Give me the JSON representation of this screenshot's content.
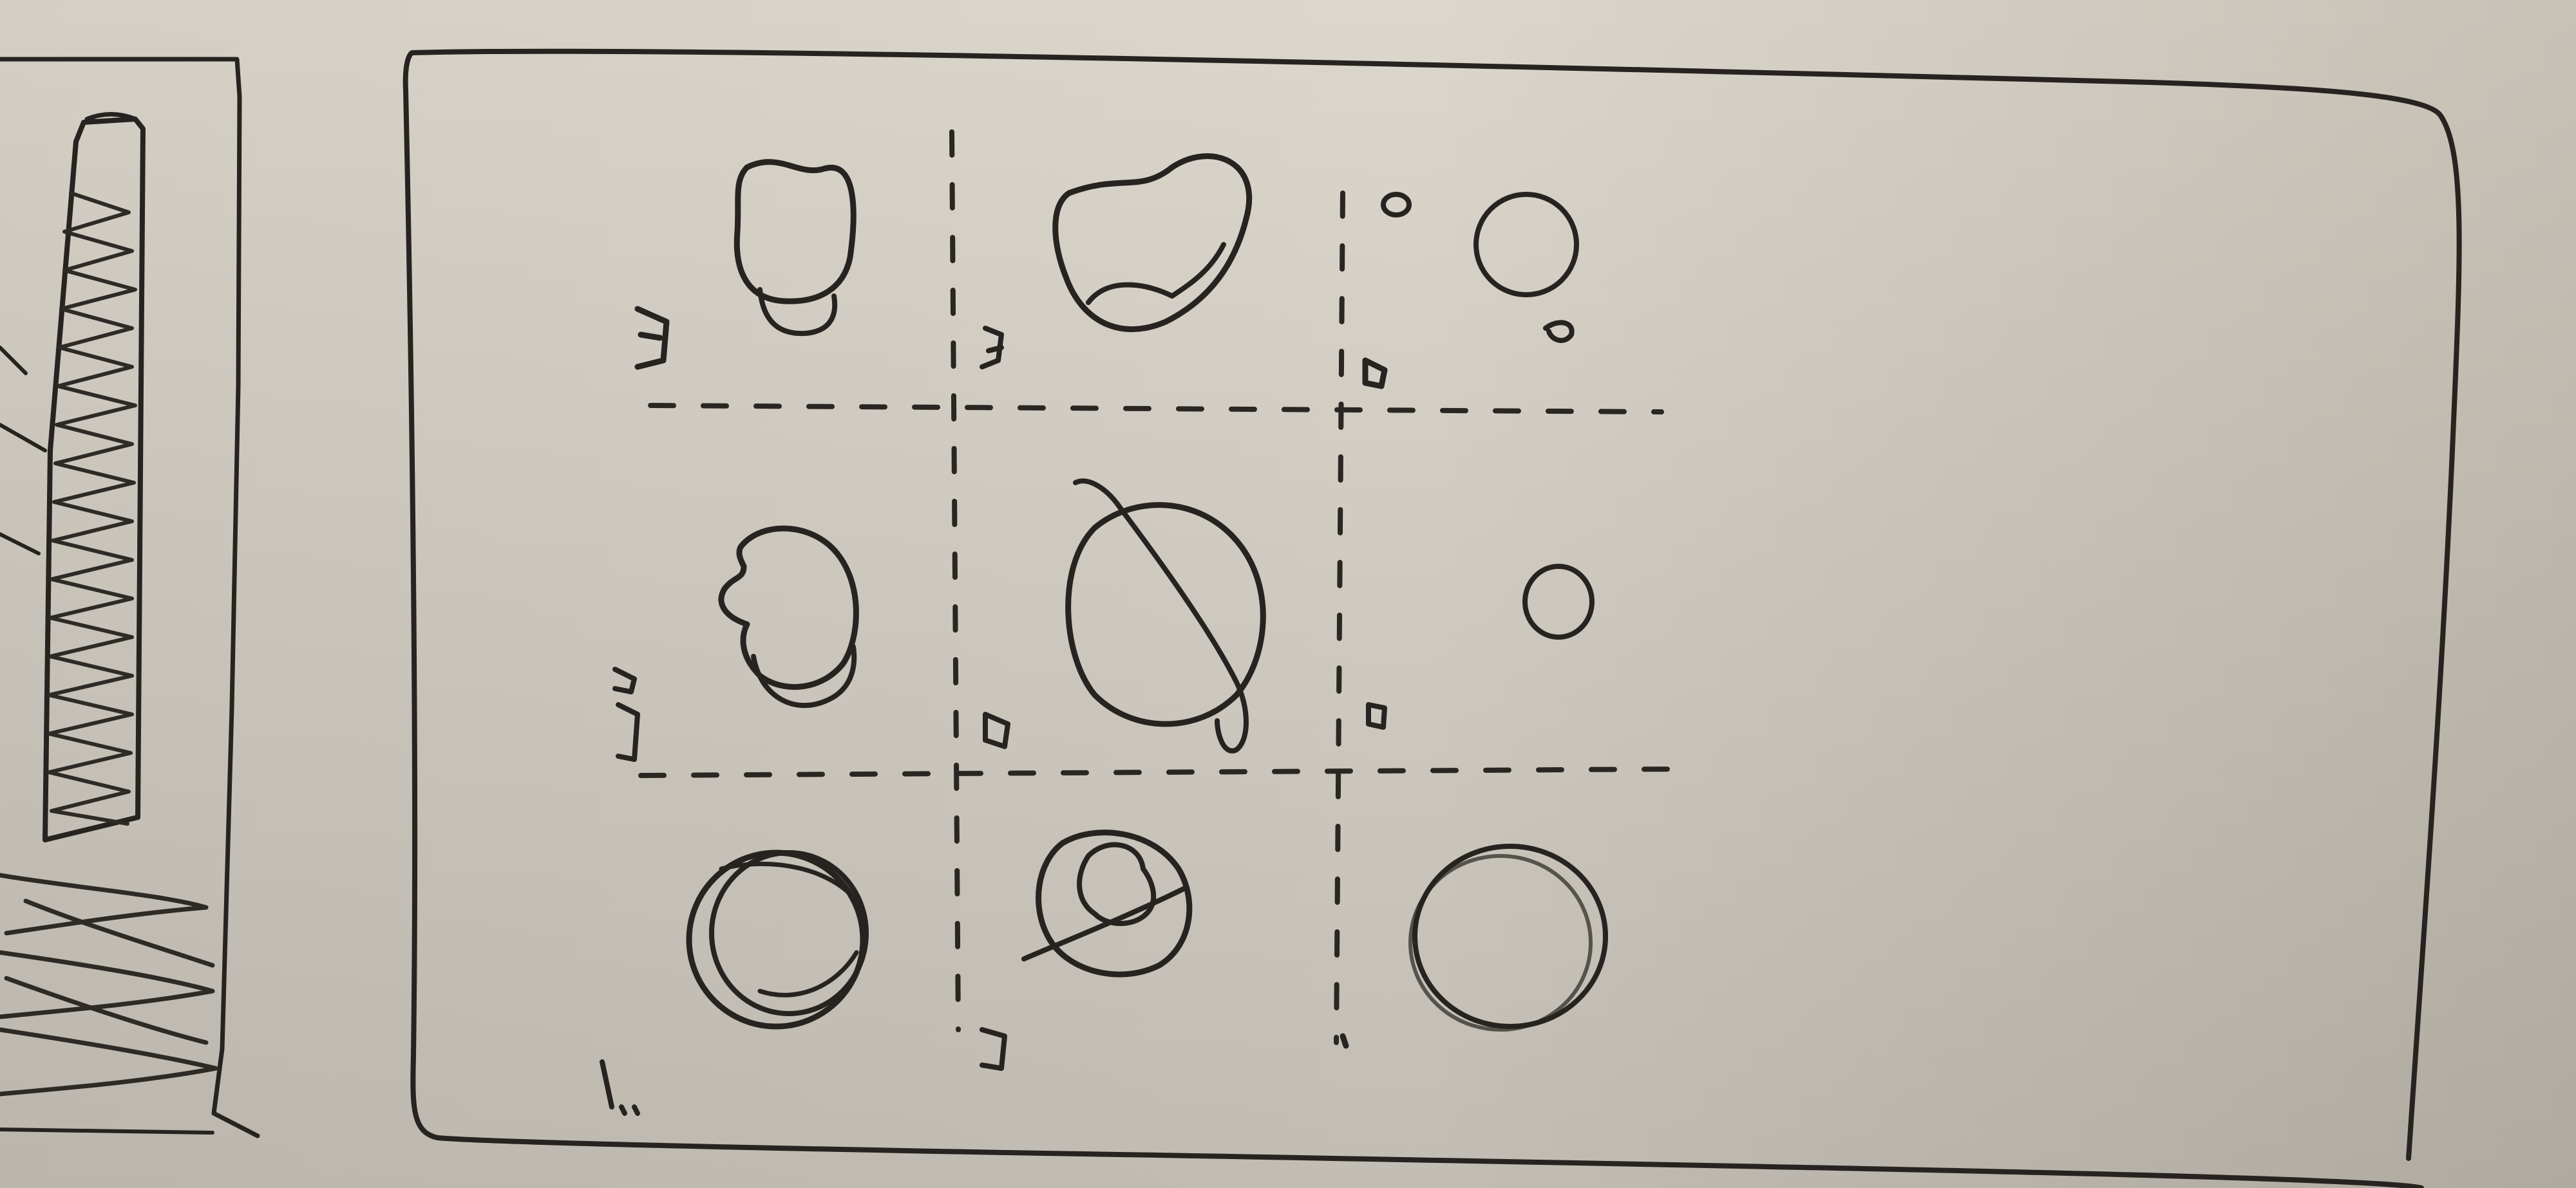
{
  "scene": {
    "description_color_paper": "#dcd7cc",
    "ink_color": "#262320",
    "paper_shadow_color": "#b9b3a8"
  },
  "sketch": {
    "cells": [
      {
        "row": 1,
        "col": 1,
        "shape": "bean-blob"
      },
      {
        "row": 1,
        "col": 2,
        "shape": "kidney-blob"
      },
      {
        "row": 1,
        "col": 3,
        "shape": "circle-with-small-dots"
      },
      {
        "row": 2,
        "col": 1,
        "shape": "lumpy-circle"
      },
      {
        "row": 2,
        "col": 2,
        "shape": "circle-with-arc"
      },
      {
        "row": 2,
        "col": 3,
        "shape": "small-circle"
      },
      {
        "row": 3,
        "col": 1,
        "shape": "double-circle"
      },
      {
        "row": 3,
        "col": 2,
        "shape": "nested-scribble"
      },
      {
        "row": 3,
        "col": 3,
        "shape": "double-circle-large"
      }
    ]
  }
}
